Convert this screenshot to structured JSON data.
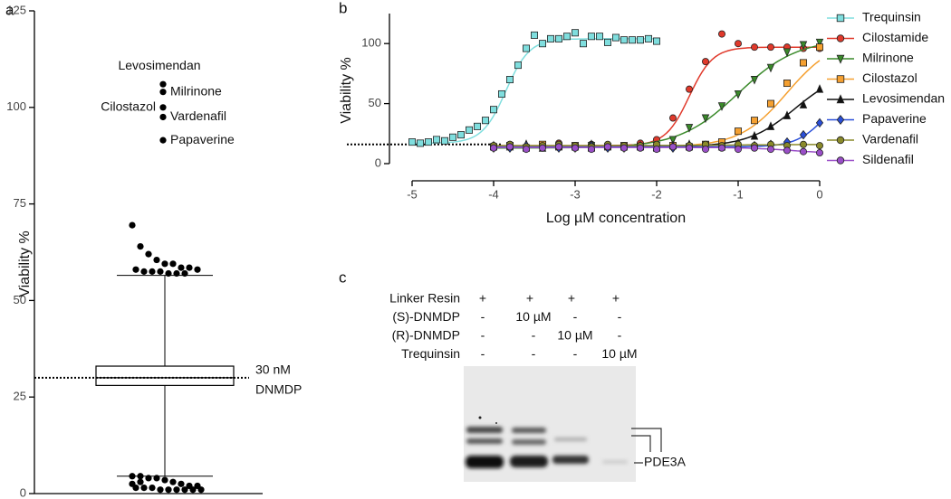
{
  "chart_data": [
    {
      "type": "box",
      "panel": "a",
      "ylabel": "Viability %",
      "ylim": [
        0,
        125
      ],
      "yticks": [
        0,
        25,
        50,
        75,
        100,
        125
      ],
      "color": "#000000",
      "box": {
        "whisker_low": 4.5,
        "q1": 28,
        "median": 30,
        "q3": 33,
        "whisker_high": 56.5
      },
      "reference": {
        "value": 30,
        "label_lines": [
          "30 nM",
          "DNMDP"
        ]
      },
      "outliers": [
        69.5,
        64,
        62,
        60.5,
        59.5,
        59.5,
        58.5,
        58.5,
        58,
        58,
        57.5,
        57.5,
        57.5,
        57,
        57,
        57,
        4.5,
        4.5,
        4,
        4,
        3.5,
        3,
        2.5,
        2,
        2,
        1.5,
        1.5,
        1.5,
        1,
        1,
        1,
        1,
        1,
        1,
        2.5,
        3
      ],
      "labeled_points": [
        {
          "name": "Levosimendan",
          "value": 106
        },
        {
          "name": "Milrinone",
          "value": 104
        },
        {
          "name": "Cilostazol",
          "value": 100
        },
        {
          "name": "Vardenafil",
          "value": 97.5
        },
        {
          "name": "Papaverine",
          "value": 91.5
        }
      ]
    },
    {
      "type": "dose_response",
      "panel": "b",
      "xlabel": "Log µM concentration",
      "ylabel": "Viability %",
      "xlim": [
        -5,
        0
      ],
      "ylim": [
        0,
        125
      ],
      "xticks": [
        -5,
        -4,
        -3,
        -2,
        -1,
        0
      ],
      "yticks": [
        0,
        50,
        100
      ],
      "baseline": 16,
      "legend": "right",
      "series": [
        {
          "name": "Trequinsin",
          "color": "#7fdede",
          "marker": "square",
          "x": [
            -5,
            -4.9,
            -4.8,
            -4.7,
            -4.6,
            -4.5,
            -4.4,
            -4.3,
            -4.2,
            -4.1,
            -4,
            -3.9,
            -3.8,
            -3.7,
            -3.6,
            -3.5,
            -3.4,
            -3.3,
            -3.2,
            -3.1,
            -3,
            -2.9,
            -2.8,
            -2.7,
            -2.6,
            -2.5,
            -2.4,
            -2.3,
            -2.2,
            -2.1,
            -2
          ],
          "values": [
            18,
            17,
            18,
            20,
            19,
            22,
            24,
            28,
            31,
            36,
            45,
            58,
            70,
            82,
            96,
            107,
            100,
            104,
            104,
            106,
            109,
            100,
            106,
            106,
            101,
            105,
            103,
            103,
            103,
            104,
            102
          ],
          "fit": {
            "bottom": 17,
            "top": 104,
            "log_ec50": -3.85,
            "hill": 3,
            "x_range": [
              -5,
              -2
            ]
          }
        },
        {
          "name": "Cilostamide",
          "color": "#e0392b",
          "marker": "circle",
          "x": [
            -4,
            -3.8,
            -3.6,
            -3.4,
            -3.2,
            -3,
            -2.8,
            -2.6,
            -2.4,
            -2.2,
            -2,
            -1.8,
            -1.6,
            -1.4,
            -1.2,
            -1,
            -0.8,
            -0.6,
            -0.4,
            -0.2,
            0
          ],
          "values": [
            15,
            16,
            14,
            15,
            17,
            15,
            16,
            14,
            15,
            17,
            20,
            38,
            62,
            85,
            108,
            100,
            97,
            97,
            97,
            96,
            96
          ],
          "fit": {
            "bottom": 15,
            "top": 97,
            "log_ec50": -1.6,
            "hill": 3,
            "x_range": [
              -4,
              0
            ]
          }
        },
        {
          "name": "Milrinone",
          "color": "#3a8a2a",
          "marker": "triangle-down",
          "x": [
            -4,
            -3.8,
            -3.6,
            -3.4,
            -3.2,
            -3,
            -2.8,
            -2.6,
            -2.4,
            -2.2,
            -2,
            -1.8,
            -1.6,
            -1.4,
            -1.2,
            -1,
            -0.8,
            -0.6,
            -0.4,
            -0.2,
            0
          ],
          "values": [
            13,
            14,
            13,
            15,
            14,
            13,
            15,
            14,
            13,
            14,
            15,
            20,
            30,
            38,
            48,
            58,
            70,
            80,
            93,
            99,
            101
          ],
          "fit": {
            "bottom": 13,
            "top": 104,
            "log_ec50": -1,
            "hill": 1.2,
            "x_range": [
              -4,
              0
            ]
          }
        },
        {
          "name": "Cilostazol",
          "color": "#f5a030",
          "marker": "square",
          "x": [
            -4,
            -3.8,
            -3.6,
            -3.4,
            -3.2,
            -3,
            -2.8,
            -2.6,
            -2.4,
            -2.2,
            -2,
            -1.8,
            -1.6,
            -1.4,
            -1.2,
            -1,
            -0.8,
            -0.6,
            -0.4,
            -0.2,
            0
          ],
          "values": [
            14,
            15,
            13,
            16,
            14,
            15,
            13,
            14,
            15,
            14,
            13,
            15,
            14,
            16,
            18,
            27,
            36,
            50,
            67,
            84,
            97
          ],
          "fit": {
            "bottom": 14,
            "top": 104,
            "log_ec50": -0.4,
            "hill": 1.5,
            "x_range": [
              -4,
              0
            ]
          }
        },
        {
          "name": "Levosimendan",
          "color": "#111111",
          "marker": "triangle-up",
          "x": [
            -4,
            -3.8,
            -3.6,
            -3.4,
            -3.2,
            -3,
            -2.8,
            -2.6,
            -2.4,
            -2.2,
            -2,
            -1.8,
            -1.6,
            -1.4,
            -1.2,
            -1,
            -0.8,
            -0.6,
            -0.4,
            -0.2,
            0
          ],
          "values": [
            15,
            14,
            16,
            13,
            15,
            14,
            16,
            15,
            14,
            15,
            14,
            15,
            16,
            15,
            14,
            17,
            23,
            31,
            40,
            49,
            62
          ],
          "fit": {
            "bottom": 14,
            "top": 78,
            "log_ec50": -0.3,
            "hill": 1.5,
            "x_range": [
              -4,
              0
            ]
          }
        },
        {
          "name": "Papaverine",
          "color": "#2a4fd8",
          "marker": "diamond",
          "x": [
            -4,
            -3.8,
            -3.6,
            -3.4,
            -3.2,
            -3,
            -2.8,
            -2.6,
            -2.4,
            -2.2,
            -2,
            -1.8,
            -1.6,
            -1.4,
            -1.2,
            -1,
            -0.8,
            -0.6,
            -0.4,
            -0.2,
            0
          ],
          "values": [
            14,
            13,
            15,
            14,
            13,
            14,
            15,
            13,
            14,
            14,
            15,
            13,
            14,
            15,
            14,
            13,
            15,
            16,
            18,
            24,
            34
          ],
          "fit": {
            "bottom": 14,
            "top": 60,
            "log_ec50": 0.05,
            "hill": 2.5,
            "x_range": [
              -4,
              0
            ]
          }
        },
        {
          "name": "Vardenafil",
          "color": "#8a8a2a",
          "marker": "circle",
          "x": [
            -4,
            -3.8,
            -3.6,
            -3.4,
            -3.2,
            -3,
            -2.8,
            -2.6,
            -2.4,
            -2.2,
            -2,
            -1.8,
            -1.6,
            -1.4,
            -1.2,
            -1,
            -0.8,
            -0.6,
            -0.4,
            -0.2,
            0
          ],
          "values": [
            15,
            16,
            14,
            15,
            16,
            15,
            14,
            16,
            15,
            15,
            16,
            14,
            15,
            16,
            15,
            16,
            15,
            16,
            15,
            16,
            15
          ],
          "fit": {
            "bottom": 15,
            "top": 16,
            "log_ec50": -1,
            "hill": 1,
            "x_range": [
              -4,
              0
            ]
          }
        },
        {
          "name": "Sildenafil",
          "color": "#9a4fc8",
          "marker": "circle",
          "x": [
            -4,
            -3.8,
            -3.6,
            -3.4,
            -3.2,
            -3,
            -2.8,
            -2.6,
            -2.4,
            -2.2,
            -2,
            -1.8,
            -1.6,
            -1.4,
            -1.2,
            -1,
            -0.8,
            -0.6,
            -0.4,
            -0.2,
            0
          ],
          "values": [
            13,
            14,
            12,
            13,
            14,
            13,
            12,
            14,
            13,
            13,
            12,
            14,
            13,
            12,
            13,
            12,
            13,
            12,
            11,
            10,
            9
          ],
          "fit": {
            "bottom": 13.5,
            "top": 8,
            "log_ec50": -0.3,
            "hill": 1.5,
            "x_range": [
              -4,
              0
            ]
          }
        }
      ]
    }
  ],
  "blot": {
    "panel": "c",
    "band_label": "PDE3A",
    "rows": [
      {
        "name": "Linker Resin",
        "cells": [
          "+",
          "+",
          "+",
          "+"
        ]
      },
      {
        "name": "(S)-DNMDP",
        "cells": [
          "-",
          "10 µM",
          "-",
          "-"
        ]
      },
      {
        "name": "(R)-DNMDP",
        "cells": [
          "-",
          "-",
          "10 µM",
          "-"
        ]
      },
      {
        "name": "Trequinsin",
        "cells": [
          "-",
          "-",
          "-",
          "10 µM"
        ]
      }
    ]
  }
}
